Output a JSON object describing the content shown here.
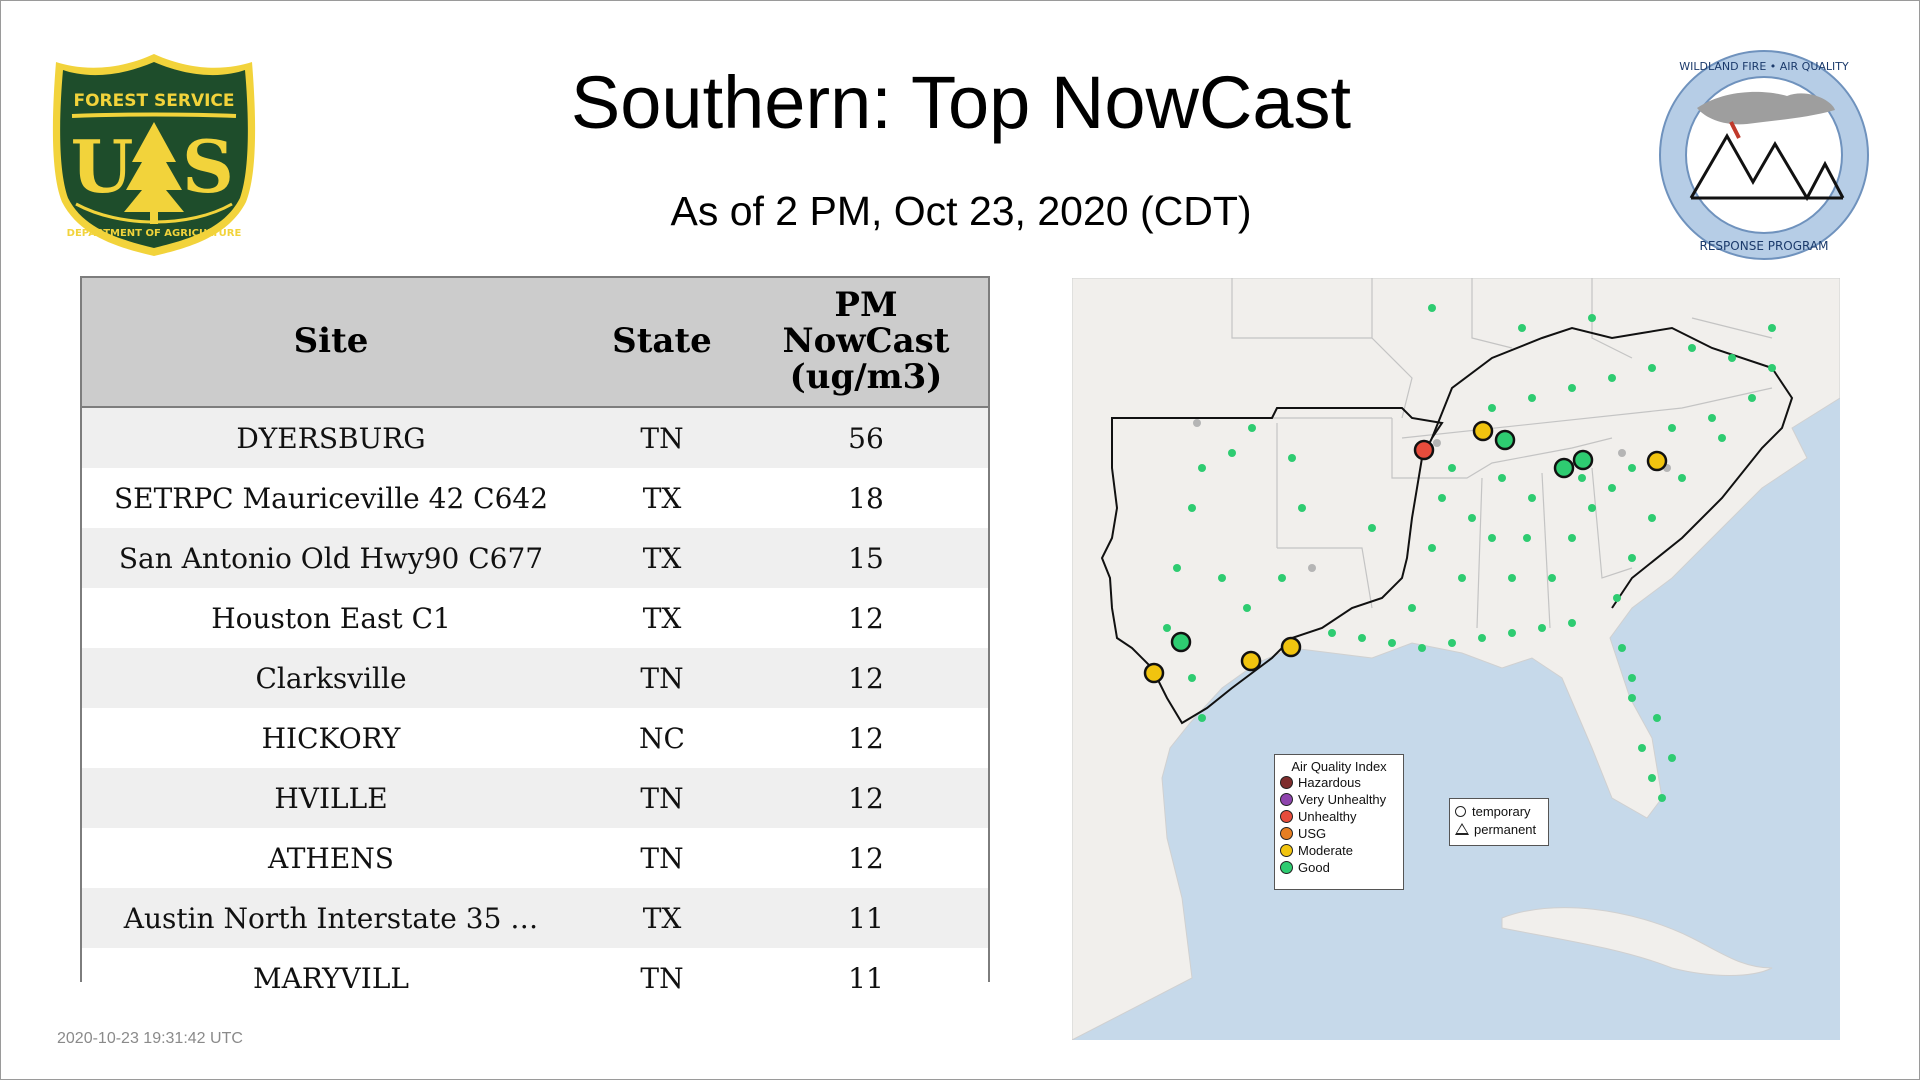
{
  "header": {
    "title": "Southern: Top NowCast",
    "subtitle": "As of  2 PM, Oct 23, 2020 (CDT)"
  },
  "logos": {
    "forest_service": {
      "top_text": "FOREST SERVICE",
      "letters": "U S",
      "bottom_text": "DEPARTMENT OF AGRICULTURE",
      "colors": {
        "green": "#1e4d2b",
        "gold": "#f2d33b"
      }
    },
    "wildland_fire": {
      "ring_text_top": "WILDLAND FIRE • AIR QUALITY",
      "ring_text_bottom": "RESPONSE PROGRAM",
      "colors": {
        "ring": "#b6cde6",
        "text": "#1b3a6b"
      }
    }
  },
  "table": {
    "headers": {
      "site": "Site",
      "state": "State",
      "nowcast": [
        "PM",
        "NowCast",
        "(ug/m3)"
      ]
    },
    "rows": [
      {
        "site": "DYERSBURG",
        "state": "TN",
        "value": "56"
      },
      {
        "site": "SETRPC Mauriceville 42 C642",
        "state": "TX",
        "value": "18"
      },
      {
        "site": "San Antonio Old Hwy90 C677",
        "state": "TX",
        "value": "15"
      },
      {
        "site": "Houston East C1",
        "state": "TX",
        "value": "12"
      },
      {
        "site": "Clarksville",
        "state": "TN",
        "value": "12"
      },
      {
        "site": "HICKORY",
        "state": "NC",
        "value": "12"
      },
      {
        "site": "HVILLE",
        "state": "TN",
        "value": "12"
      },
      {
        "site": "ATHENS",
        "state": "TN",
        "value": "12"
      },
      {
        "site": "Austin North Interstate 35 …",
        "state": "TX",
        "value": "11"
      },
      {
        "site": "MARYVILL",
        "state": "TN",
        "value": "11"
      }
    ]
  },
  "map": {
    "legend": {
      "title": "Air Quality Index",
      "items": [
        {
          "label": "Hazardous",
          "color": "#7e2d2d"
        },
        {
          "label": "Very Unhealthy",
          "color": "#8e44ad"
        },
        {
          "label": "Unhealthy",
          "color": "#e74c3c"
        },
        {
          "label": "USG",
          "color": "#e67e22"
        },
        {
          "label": "Moderate",
          "color": "#f1c40f"
        },
        {
          "label": "Good",
          "color": "#2ecc71"
        }
      ]
    },
    "shape_legend": {
      "temporary": "temporary",
      "permanent": "permanent"
    },
    "colors": {
      "water": "#c6d9ea",
      "land": "#f1efec",
      "border": "#b9b9b9",
      "region": "#111111"
    }
  },
  "footer": {
    "timestamp": "2020-10-23 19:31:42 UTC"
  }
}
